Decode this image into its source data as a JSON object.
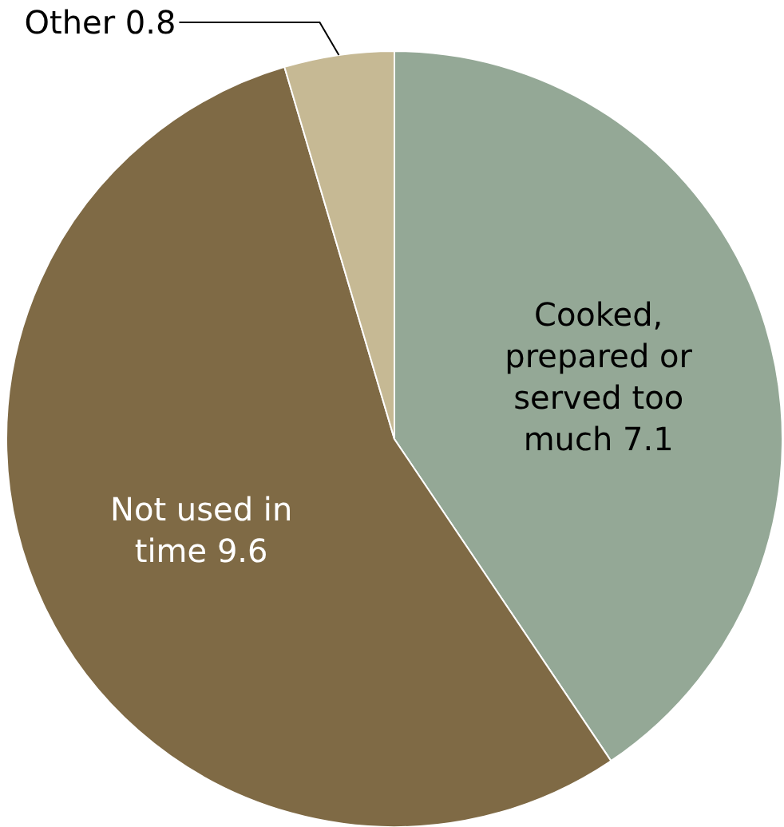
{
  "chart_data": {
    "type": "pie",
    "categories": [
      "Cooked, prepared or served too much",
      "Not used in time",
      "Other"
    ],
    "values": [
      7.1,
      9.6,
      0.8
    ],
    "colors": [
      "#94a896",
      "#7f6a45",
      "#c6b994"
    ],
    "data_labels": true
  }
}
